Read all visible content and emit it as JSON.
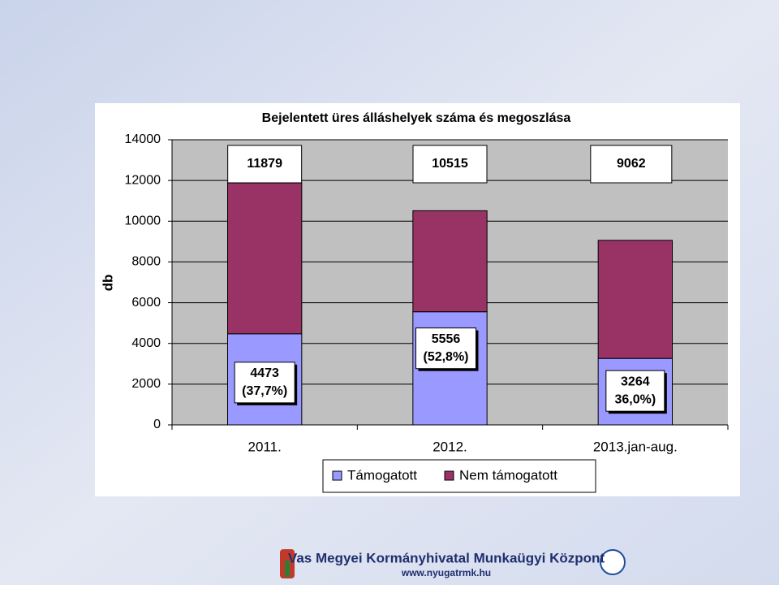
{
  "chart_data": {
    "type": "stacked_bar",
    "title": "Bejelentett üres álláshelyek száma és megoszlása",
    "y_label": "db",
    "categories": [
      "2011.",
      "2012.",
      "2013.jan-aug."
    ],
    "series": [
      {
        "name": "Támogatott",
        "color": "#9999ff",
        "values": [
          4473,
          5556,
          3264
        ],
        "value_labels": [
          "4473",
          "5556",
          "3264"
        ],
        "share_labels": [
          "(37,7%)",
          "(52,8%)",
          "36,0%)"
        ]
      },
      {
        "name": "Nem támogatott",
        "color": "#993366",
        "values": [
          7406,
          4959,
          5798
        ]
      }
    ],
    "totals": [
      11879,
      10515,
      9062
    ],
    "ylim": [
      0,
      14000
    ],
    "yticks": [
      0,
      2000,
      4000,
      6000,
      8000,
      10000,
      12000,
      14000
    ],
    "grid": true,
    "legend": "bottom"
  },
  "footer": {
    "organization": "Vas Megyei Kormányhivatal Munkaügyi Központ",
    "url": "www.nyugatrmk.hu"
  }
}
